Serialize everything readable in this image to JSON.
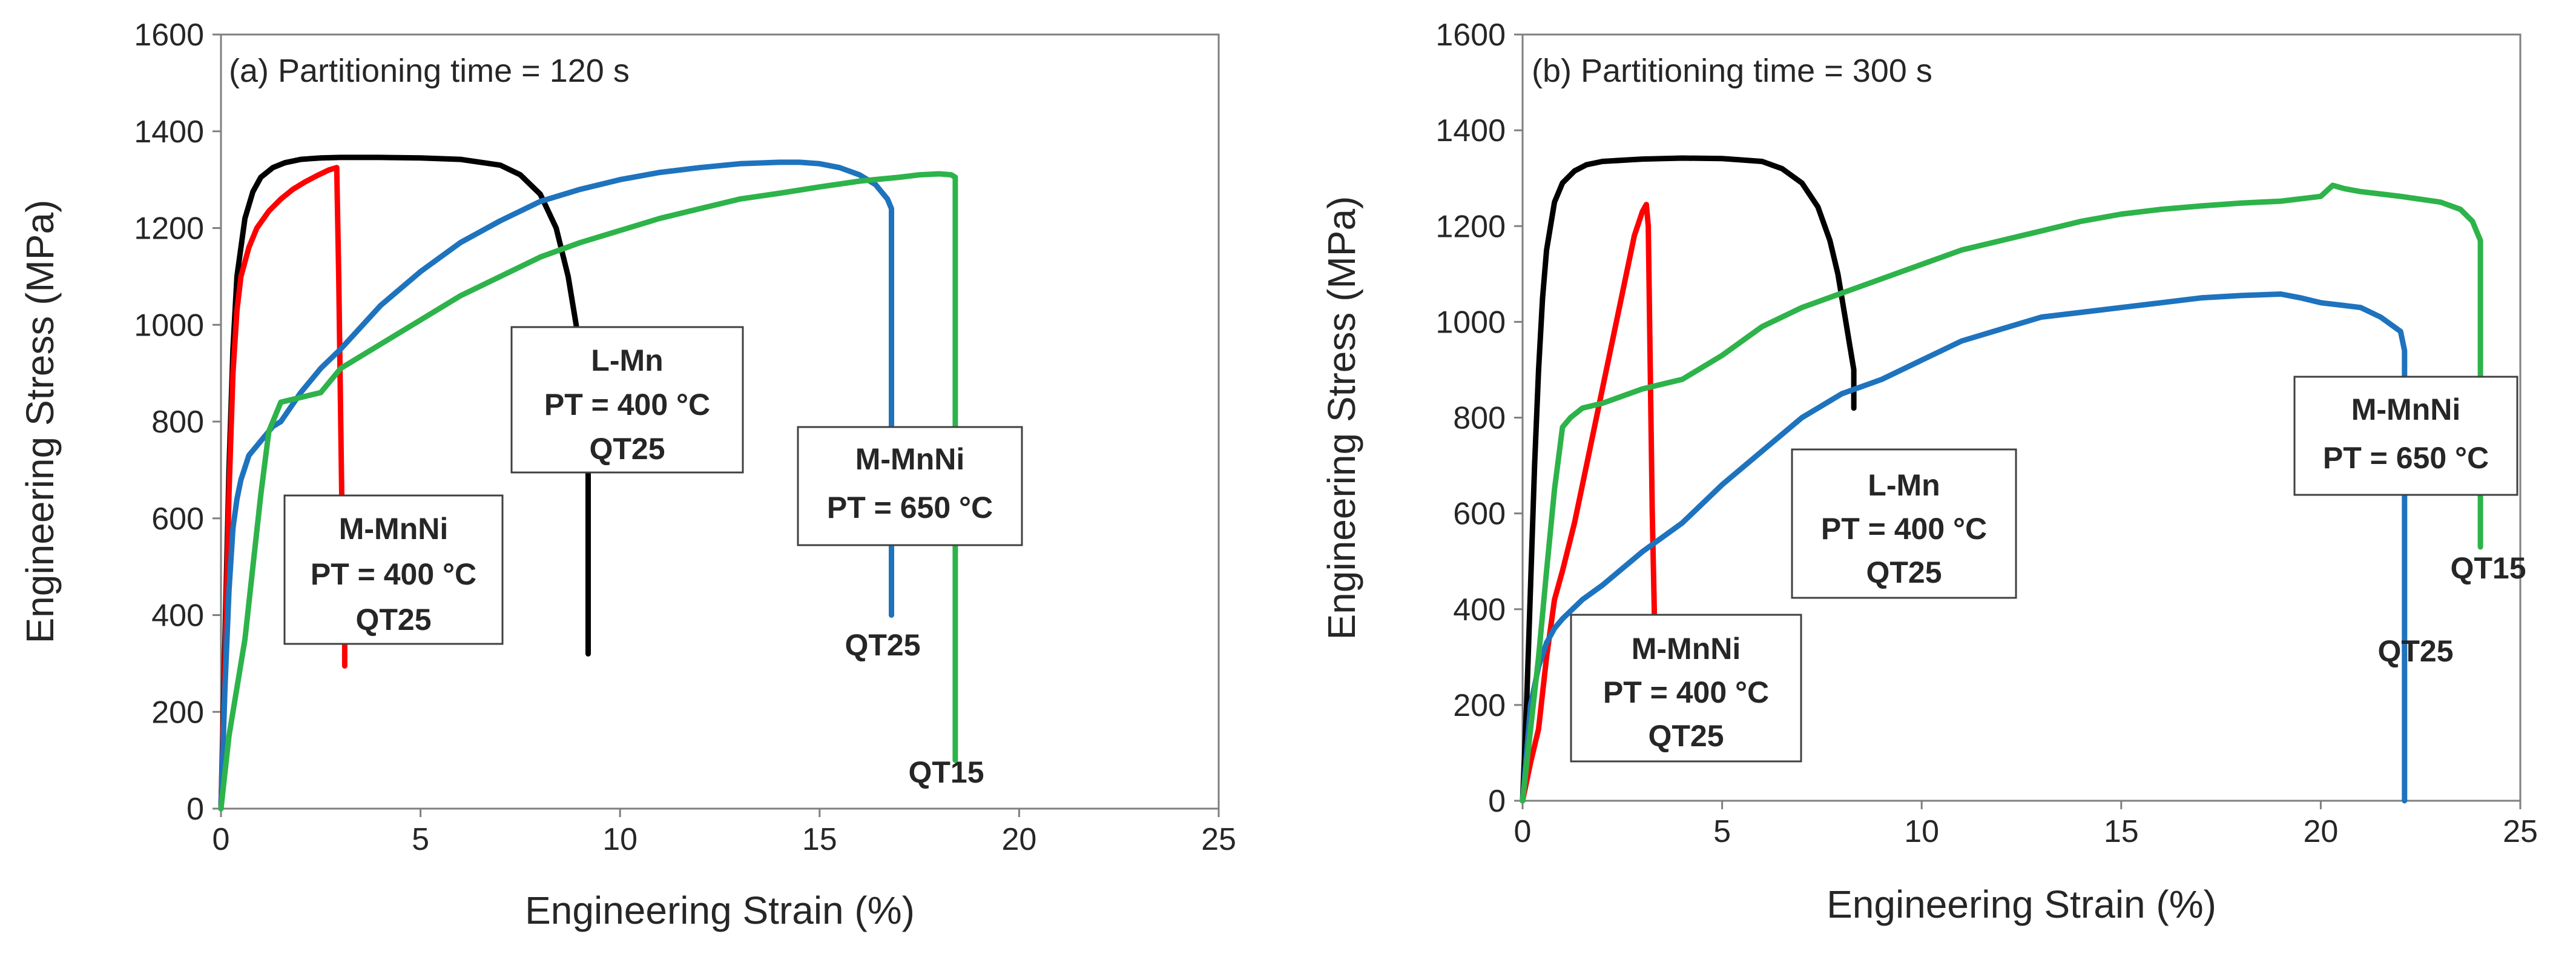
{
  "chart_data": [
    {
      "type": "line",
      "panel_label": "(a) Partitioning time = 120 s",
      "xlabel": "Engineering Strain (%)",
      "ylabel": "Engineering Stress (MPa)",
      "xlim": [
        0,
        25
      ],
      "ylim": [
        0,
        1600
      ],
      "xticks": [
        "0",
        "5",
        "10",
        "15",
        "20",
        "25"
      ],
      "yticks": [
        "0",
        "200",
        "400",
        "600",
        "800",
        "1000",
        "1200",
        "1400",
        "1600"
      ],
      "grid": false,
      "series": [
        {
          "name": "L-Mn PT = 400 °C QT25",
          "color": "#000000",
          "x": [
            0,
            0.1,
            0.2,
            0.3,
            0.4,
            0.6,
            0.8,
            1.0,
            1.3,
            1.6,
            2.0,
            2.5,
            3.0,
            4.0,
            5.0,
            6.0,
            7.0,
            7.5,
            8.0,
            8.4,
            8.7,
            8.9,
            9.05,
            9.15,
            9.2,
            9.2,
            9.2
          ],
          "y": [
            0,
            350,
            700,
            950,
            1100,
            1220,
            1275,
            1305,
            1325,
            1335,
            1342,
            1345,
            1346,
            1346,
            1345,
            1342,
            1330,
            1310,
            1270,
            1200,
            1100,
            1000,
            900,
            800,
            700,
            500,
            320
          ]
        },
        {
          "name": "M-MnNi PT = 400 °C QT25",
          "color": "#ff0000",
          "x": [
            0,
            0.1,
            0.2,
            0.3,
            0.4,
            0.5,
            0.7,
            0.9,
            1.2,
            1.5,
            1.8,
            2.1,
            2.4,
            2.7,
            2.9,
            2.95,
            3.0,
            3.05,
            3.1,
            3.1
          ],
          "y": [
            0,
            300,
            650,
            900,
            1030,
            1100,
            1160,
            1200,
            1235,
            1260,
            1280,
            1295,
            1308,
            1320,
            1325,
            1100,
            800,
            500,
            350,
            295
          ]
        },
        {
          "name": "M-MnNi PT = 650 °C QT25",
          "color": "#1e73be",
          "x": [
            0,
            0.1,
            0.2,
            0.3,
            0.4,
            0.5,
            0.7,
            1.0,
            1.3,
            1.5,
            2.0,
            2.5,
            3.0,
            4.0,
            5.0,
            6.0,
            7.0,
            8.0,
            9.0,
            10.0,
            11.0,
            12.0,
            13.0,
            14.0,
            14.5,
            15.0,
            15.5,
            16.0,
            16.4,
            16.7,
            16.8,
            16.8,
            16.8
          ],
          "y": [
            0,
            250,
            450,
            580,
            640,
            680,
            730,
            760,
            790,
            800,
            860,
            910,
            950,
            1040,
            1110,
            1170,
            1215,
            1255,
            1280,
            1300,
            1315,
            1325,
            1333,
            1336,
            1336,
            1333,
            1325,
            1310,
            1290,
            1260,
            1240,
            800,
            400
          ]
        },
        {
          "name": "M-MnNi PT = 650 °C QT15",
          "color": "#2db34a",
          "x": [
            0,
            0.2,
            0.4,
            0.6,
            0.8,
            1.0,
            1.2,
            1.5,
            2.0,
            2.5,
            3.0,
            4.0,
            5.0,
            6.0,
            7.0,
            8.0,
            9.0,
            10.0,
            11.0,
            12.0,
            13.0,
            14.0,
            15.0,
            16.0,
            17.0,
            17.5,
            18.0,
            18.3,
            18.4,
            18.4,
            18.4
          ],
          "y": [
            0,
            150,
            250,
            350,
            500,
            650,
            780,
            840,
            850,
            860,
            910,
            960,
            1010,
            1060,
            1100,
            1140,
            1170,
            1195,
            1220,
            1240,
            1260,
            1272,
            1285,
            1297,
            1305,
            1310,
            1312,
            1310,
            1305,
            800,
            100
          ]
        }
      ],
      "annotations": [
        {
          "lines": [
            "L-Mn",
            "PT = 400 °C",
            "QT25"
          ]
        },
        {
          "lines": [
            "M-MnNi",
            "PT = 400 °C",
            "QT25"
          ]
        },
        {
          "lines": [
            "M-MnNi",
            "PT = 650 °C"
          ]
        },
        {
          "text": "QT25"
        },
        {
          "text": "QT15"
        }
      ]
    },
    {
      "type": "line",
      "panel_label": "(b) Partitioning time = 300 s",
      "xlabel": "Engineering Strain (%)",
      "ylabel": "Engineering Stress (MPa)",
      "xlim": [
        0,
        25
      ],
      "ylim": [
        0,
        1600
      ],
      "xticks": [
        "0",
        "5",
        "10",
        "15",
        "20",
        "25"
      ],
      "yticks": [
        "0",
        "200",
        "400",
        "600",
        "800",
        "1000",
        "1200",
        "1400",
        "1600"
      ],
      "grid": false,
      "series": [
        {
          "name": "L-Mn PT = 400 °C QT25",
          "color": "#000000",
          "x": [
            0,
            0.1,
            0.2,
            0.3,
            0.4,
            0.5,
            0.6,
            0.8,
            1.0,
            1.3,
            1.6,
            2.0,
            3.0,
            4.0,
            5.0,
            6.0,
            6.5,
            7.0,
            7.4,
            7.7,
            7.9,
            8.1,
            8.2,
            8.3,
            8.3
          ],
          "y": [
            0,
            200,
            450,
            700,
            900,
            1050,
            1150,
            1250,
            1290,
            1315,
            1328,
            1335,
            1340,
            1342,
            1341,
            1335,
            1320,
            1290,
            1240,
            1170,
            1100,
            1000,
            950,
            900,
            820
          ]
        },
        {
          "name": "M-MnNi PT = 400 °C QT25",
          "color": "#ff0000",
          "x": [
            0,
            0.2,
            0.4,
            0.6,
            0.8,
            1.0,
            1.3,
            1.6,
            2.0,
            2.3,
            2.6,
            2.8,
            3.0,
            3.1,
            3.15,
            3.2,
            3.25,
            3.3,
            3.3
          ],
          "y": [
            0,
            80,
            150,
            300,
            420,
            480,
            580,
            700,
            860,
            980,
            1100,
            1180,
            1230,
            1245,
            1200,
            900,
            600,
            400,
            380
          ]
        },
        {
          "name": "M-MnNi PT = 650 °C QT25",
          "color": "#1e73be",
          "x": [
            0,
            0.2,
            0.4,
            0.6,
            0.8,
            1.0,
            1.5,
            2.0,
            3.0,
            4.0,
            5.0,
            6.0,
            7.0,
            8.0,
            9.0,
            10.0,
            11.0,
            12.0,
            13.0,
            14.0,
            15.0,
            16.0,
            17.0,
            18.0,
            19.0,
            19.5,
            20.0,
            20.5,
            21.0,
            21.5,
            22.0,
            22.1,
            22.1,
            22.1
          ],
          "y": [
            0,
            200,
            280,
            330,
            360,
            380,
            420,
            450,
            520,
            580,
            660,
            730,
            800,
            850,
            880,
            920,
            960,
            985,
            1010,
            1020,
            1030,
            1040,
            1050,
            1055,
            1058,
            1050,
            1040,
            1035,
            1030,
            1010,
            980,
            940,
            400,
            0
          ]
        },
        {
          "name": "M-MnNi PT = 650 °C QT15",
          "color": "#2db34a",
          "x": [
            0,
            0.2,
            0.4,
            0.6,
            0.8,
            1.0,
            1.2,
            1.5,
            2.0,
            3.0,
            4.0,
            5.0,
            6.0,
            7.0,
            8.0,
            9.0,
            10.0,
            11.0,
            12.0,
            13.0,
            14.0,
            15.0,
            16.0,
            17.0,
            18.0,
            19.0,
            20.0,
            20.3,
            20.6,
            21.0,
            22.0,
            23.0,
            23.5,
            23.8,
            24.0,
            24.0,
            24.0
          ],
          "y": [
            0,
            150,
            300,
            480,
            650,
            780,
            800,
            820,
            830,
            860,
            880,
            930,
            990,
            1030,
            1060,
            1090,
            1120,
            1150,
            1170,
            1190,
            1210,
            1225,
            1235,
            1242,
            1248,
            1252,
            1262,
            1285,
            1278,
            1272,
            1262,
            1250,
            1235,
            1210,
            1170,
            800,
            530
          ]
        }
      ],
      "annotations": [
        {
          "lines": [
            "L-Mn",
            "PT = 400 °C",
            "QT25"
          ]
        },
        {
          "lines": [
            "M-MnNi",
            "PT = 400 °C",
            "QT25"
          ]
        },
        {
          "lines": [
            "M-MnNi",
            "PT = 650 °C"
          ]
        },
        {
          "text": "QT25"
        },
        {
          "text": "QT15"
        }
      ]
    }
  ]
}
